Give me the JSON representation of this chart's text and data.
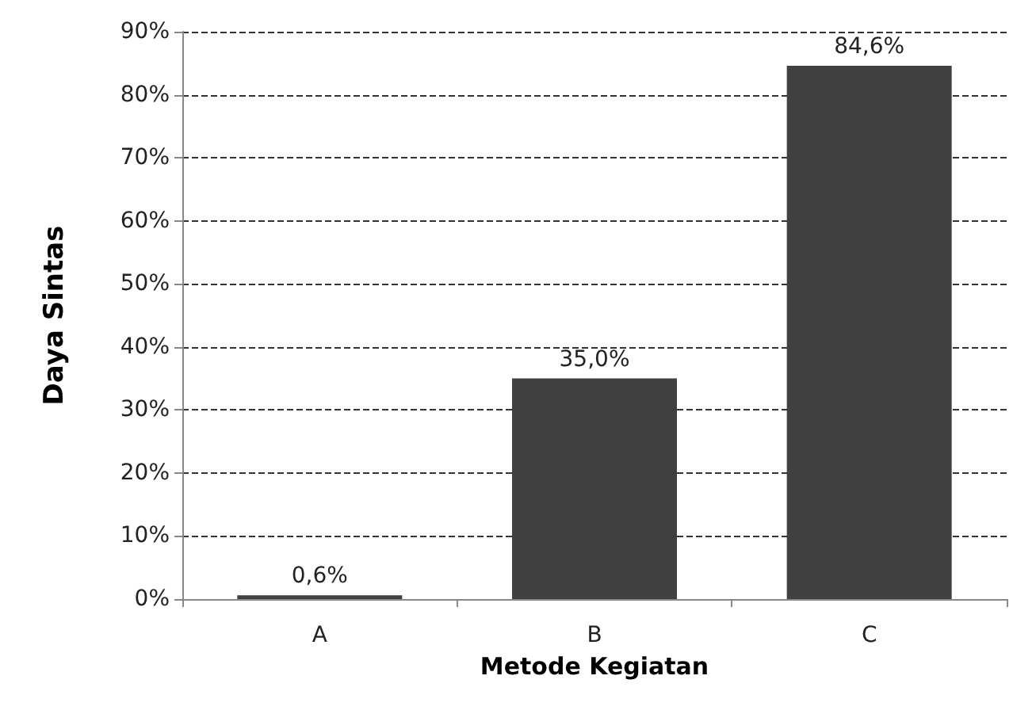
{
  "chart_data": {
    "type": "bar",
    "xlabel": "Metode Kegiatan",
    "ylabel": "Daya Sintas",
    "categories": [
      "A",
      "B",
      "C"
    ],
    "values": [
      0.6,
      35.0,
      84.6
    ],
    "value_labels": [
      "0,6%",
      "35,0%",
      "84,6%"
    ],
    "color": "#404040",
    "ylim": [
      0,
      90
    ],
    "yticks": [
      {
        "value": 0,
        "label": "0%"
      },
      {
        "value": 10,
        "label": "10%"
      },
      {
        "value": 20,
        "label": "20%"
      },
      {
        "value": 30,
        "label": "30%"
      },
      {
        "value": 40,
        "label": "40%"
      },
      {
        "value": 50,
        "label": "50%"
      },
      {
        "value": 60,
        "label": "60%"
      },
      {
        "value": 70,
        "label": "70%"
      },
      {
        "value": 80,
        "label": "80%"
      },
      {
        "value": 90,
        "label": "90%"
      }
    ],
    "grid": "y"
  }
}
